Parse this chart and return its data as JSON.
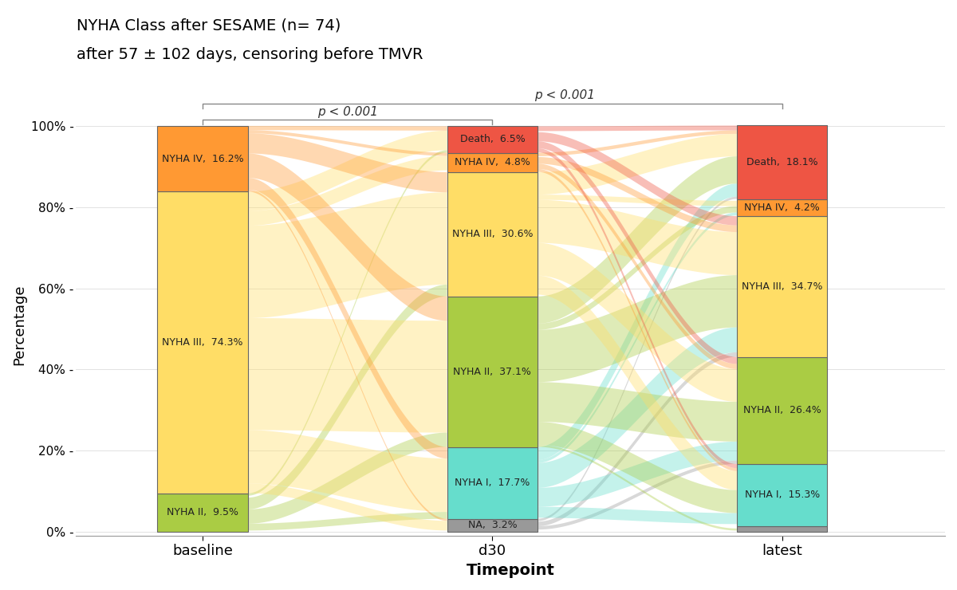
{
  "title_line1": "NYHA Class after SESAME (n= 74)",
  "title_line2": "after 57 ± 102 days, censoring before TMVR",
  "xlabel": "Timepoint",
  "ylabel": "Percentage",
  "timepoints": [
    "baseline",
    "d30",
    "latest"
  ],
  "categories": [
    "NA",
    "NYHA I",
    "NYHA II",
    "NYHA III",
    "NYHA IV",
    "Death"
  ],
  "colors": {
    "NA": "#999999",
    "NYHA I": "#66DDCC",
    "NYHA II": "#AACC44",
    "NYHA III": "#FFDD66",
    "NYHA IV": "#FF9933",
    "Death": "#EE5544"
  },
  "data": {
    "baseline": {
      "NA": 0.0,
      "NYHA I": 0.0,
      "NYHA II": 9.5,
      "NYHA III": 74.3,
      "NYHA IV": 16.2,
      "Death": 0.0
    },
    "d30": {
      "NA": 3.2,
      "NYHA I": 17.7,
      "NYHA II": 37.1,
      "NYHA III": 30.6,
      "NYHA IV": 4.8,
      "Death": 6.5
    },
    "latest": {
      "NA": 1.4,
      "NYHA I": 15.3,
      "NYHA II": 26.4,
      "NYHA III": 34.7,
      "NYHA IV": 4.2,
      "Death": 18.1
    }
  },
  "bar_positions": [
    0.18,
    0.5,
    0.82
  ],
  "bar_width": 0.1,
  "p_value_1": "p < 0.001",
  "p_value_2": "p < 0.001",
  "background_color": "#ffffff",
  "flow_alpha": 0.38
}
